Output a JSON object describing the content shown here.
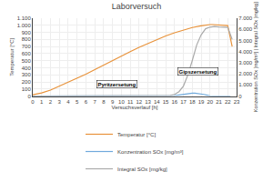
{
  "chart_data": {
    "type": "line",
    "title": "Laborversuch",
    "x_label": "Versuchsverlauf [h]",
    "y_label": "Temperatur [°C]",
    "y2_label": "Konzentration SOx [mg/m³] | Integral SOx [mg/kg]",
    "xlim": [
      0,
      23
    ],
    "xticks": [
      0,
      1,
      2,
      3,
      4,
      5,
      6,
      7,
      8,
      9,
      10,
      11,
      12,
      13,
      14,
      15,
      16,
      17,
      18,
      19,
      20,
      21,
      22,
      23
    ],
    "ylim": [
      0,
      1100
    ],
    "yticks": [
      0,
      100,
      200,
      300,
      400,
      500,
      600,
      700,
      800,
      900,
      {
        "value": 1000,
        "label": "1.000"
      },
      {
        "value": 1100,
        "label": "1.100"
      }
    ],
    "y2lim": [
      0,
      7000
    ],
    "y2ticks": [
      0,
      {
        "value": 1000,
        "label": "1.000"
      },
      {
        "value": 2000,
        "label": "2.000"
      },
      {
        "value": 3000,
        "label": "3.000"
      },
      {
        "value": 4000,
        "label": "4.000"
      },
      {
        "value": 5000,
        "label": "5.000"
      },
      {
        "value": 6000,
        "label": "6.000"
      },
      {
        "value": 7000,
        "label": "7.000"
      }
    ],
    "grid": true,
    "legend": "bottom",
    "series": [
      {
        "name": "Temperatur [°C]",
        "color": "#E8923A",
        "axis": "y",
        "x": [
          0,
          0.5,
          1,
          2,
          3,
          4,
          5,
          6,
          7,
          8,
          9,
          10,
          11,
          12,
          13,
          14,
          15,
          16,
          17,
          18,
          19,
          19.5,
          20,
          20.3,
          21,
          22,
          22.5
        ],
        "values": [
          20,
          28,
          45,
          85,
          140,
          195,
          252,
          310,
          375,
          440,
          505,
          568,
          628,
          688,
          745,
          800,
          850,
          895,
          935,
          968,
          992,
          1005,
          1010,
          1010,
          1005,
          995,
          700
        ]
      },
      {
        "name": "Konzentration SOx [mg/m³]",
        "color": "#70AADC",
        "axis": "y2",
        "x": [
          0,
          1,
          2,
          3,
          4,
          5,
          6,
          7,
          7.3,
          7.6,
          8,
          8.3,
          8.7,
          9,
          9.5,
          10,
          11,
          12,
          13,
          14,
          14.5,
          15,
          15.5,
          16,
          16.5,
          17,
          17.3,
          17.7,
          18,
          18.3,
          18.7,
          19,
          19.3,
          19.7,
          20,
          20.5,
          21,
          21.5,
          22,
          22.3
        ],
        "values": [
          0,
          0,
          0,
          0,
          0,
          0,
          0,
          2,
          12,
          35,
          50,
          42,
          28,
          15,
          7,
          2,
          0,
          0,
          0,
          0,
          2,
          8,
          20,
          50,
          100,
          170,
          220,
          260,
          270,
          265,
          240,
          200,
          150,
          80,
          30,
          10,
          3,
          1,
          0,
          0
        ]
      },
      {
        "name": "Integral SOx [mg/kg]",
        "color": "#AAAAAA",
        "axis": "y2",
        "x": [
          0,
          1,
          2,
          3,
          4,
          5,
          6,
          7,
          8,
          9,
          10,
          11,
          12,
          13,
          14,
          15,
          15.5,
          16,
          16.5,
          17,
          17.5,
          18,
          18.5,
          19,
          19.5,
          20,
          20.5,
          21,
          21.5,
          22,
          22.5
        ],
        "values": [
          0,
          0,
          0,
          0,
          0,
          0,
          0,
          0,
          5,
          10,
          15,
          18,
          20,
          22,
          24,
          30,
          60,
          150,
          400,
          900,
          1900,
          3200,
          4600,
          5500,
          6050,
          6200,
          6250,
          6220,
          6200,
          6180,
          5100
        ]
      }
    ],
    "annotations": [
      {
        "text": "Pyritzersetung",
        "x": 7.2,
        "y": 105
      },
      {
        "text": "Gipszersetung",
        "x": 16.3,
        "y": 290
      }
    ]
  }
}
